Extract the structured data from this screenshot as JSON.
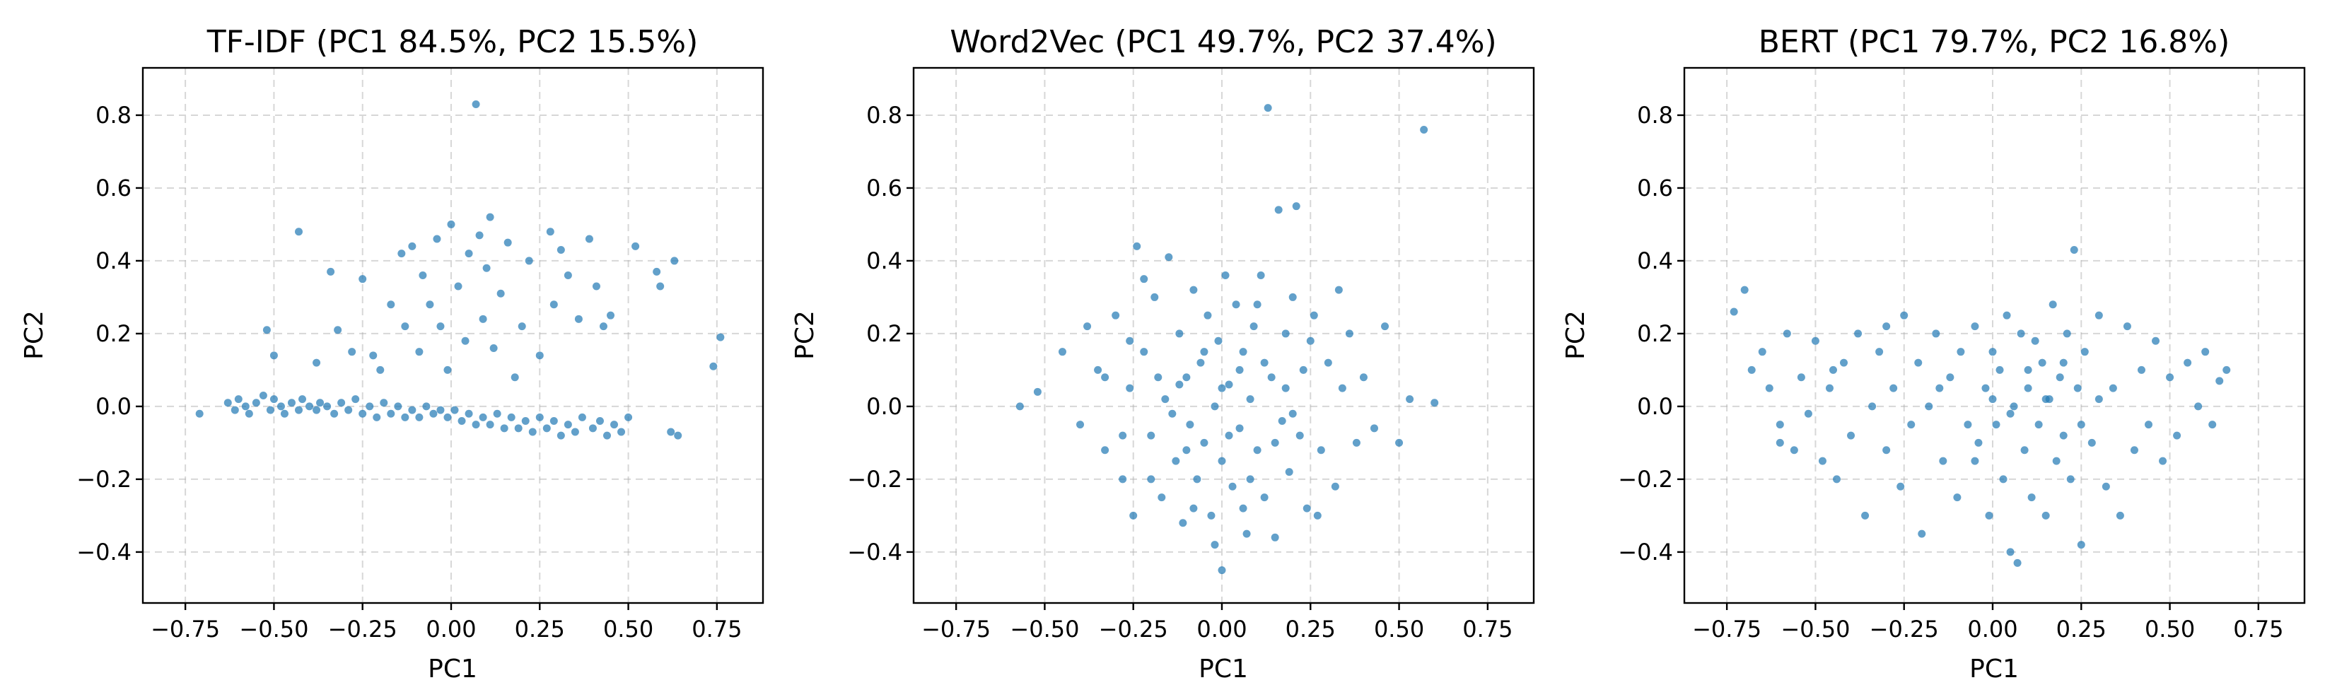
{
  "chart_data": [
    {
      "type": "scatter",
      "title": "TF-IDF (PC1 84.5%, PC2 15.5%)",
      "xlabel": "PC1",
      "ylabel": "PC2",
      "xlim": [
        -0.87,
        0.88
      ],
      "ylim": [
        -0.54,
        0.93
      ],
      "xticks": [
        -0.75,
        -0.5,
        -0.25,
        0.0,
        0.25,
        0.5,
        0.75
      ],
      "xtick_labels": [
        "−0.75",
        "−0.50",
        "−0.25",
        "0.00",
        "0.25",
        "0.50",
        "0.75"
      ],
      "yticks": [
        -0.4,
        -0.2,
        0.0,
        0.2,
        0.4,
        0.6,
        0.8
      ],
      "ytick_labels": [
        "−0.4",
        "−0.2",
        "0.0",
        "0.2",
        "0.4",
        "0.6",
        "0.8"
      ],
      "grid": true,
      "color": "#1f77b4",
      "points": [
        [
          -0.71,
          -0.02
        ],
        [
          -0.63,
          0.01
        ],
        [
          -0.61,
          -0.01
        ],
        [
          -0.6,
          0.02
        ],
        [
          -0.58,
          0.0
        ],
        [
          -0.57,
          -0.02
        ],
        [
          -0.55,
          0.01
        ],
        [
          -0.53,
          0.03
        ],
        [
          -0.51,
          -0.01
        ],
        [
          -0.5,
          0.02
        ],
        [
          -0.48,
          0.0
        ],
        [
          -0.47,
          -0.02
        ],
        [
          -0.45,
          0.01
        ],
        [
          -0.43,
          -0.01
        ],
        [
          -0.42,
          0.02
        ],
        [
          -0.4,
          0.0
        ],
        [
          -0.38,
          -0.01
        ],
        [
          -0.37,
          0.01
        ],
        [
          -0.35,
          0.0
        ],
        [
          -0.33,
          -0.02
        ],
        [
          -0.31,
          0.01
        ],
        [
          -0.29,
          -0.01
        ],
        [
          -0.27,
          0.02
        ],
        [
          -0.25,
          -0.02
        ],
        [
          -0.23,
          0.0
        ],
        [
          -0.21,
          -0.03
        ],
        [
          -0.19,
          0.01
        ],
        [
          -0.17,
          -0.02
        ],
        [
          -0.15,
          0.0
        ],
        [
          -0.13,
          -0.03
        ],
        [
          -0.11,
          -0.01
        ],
        [
          -0.09,
          -0.03
        ],
        [
          -0.07,
          0.0
        ],
        [
          -0.05,
          -0.02
        ],
        [
          -0.03,
          -0.01
        ],
        [
          -0.01,
          -0.03
        ],
        [
          0.01,
          -0.01
        ],
        [
          0.03,
          -0.04
        ],
        [
          0.05,
          -0.02
        ],
        [
          0.07,
          -0.05
        ],
        [
          0.09,
          -0.03
        ],
        [
          0.11,
          -0.05
        ],
        [
          0.13,
          -0.02
        ],
        [
          0.15,
          -0.06
        ],
        [
          0.17,
          -0.03
        ],
        [
          0.19,
          -0.06
        ],
        [
          0.21,
          -0.04
        ],
        [
          0.23,
          -0.07
        ],
        [
          0.25,
          -0.03
        ],
        [
          0.27,
          -0.06
        ],
        [
          0.29,
          -0.04
        ],
        [
          0.31,
          -0.08
        ],
        [
          0.33,
          -0.05
        ],
        [
          0.35,
          -0.07
        ],
        [
          0.37,
          -0.03
        ],
        [
          0.4,
          -0.06
        ],
        [
          0.42,
          -0.04
        ],
        [
          0.44,
          -0.08
        ],
        [
          0.46,
          -0.05
        ],
        [
          0.48,
          -0.07
        ],
        [
          0.5,
          -0.03
        ],
        [
          0.62,
          -0.07
        ],
        [
          0.64,
          -0.08
        ],
        [
          -0.52,
          0.21
        ],
        [
          -0.5,
          0.14
        ],
        [
          -0.43,
          0.48
        ],
        [
          -0.38,
          0.12
        ],
        [
          -0.34,
          0.37
        ],
        [
          -0.32,
          0.21
        ],
        [
          -0.28,
          0.15
        ],
        [
          -0.25,
          0.35
        ],
        [
          -0.22,
          0.14
        ],
        [
          -0.2,
          0.1
        ],
        [
          -0.17,
          0.28
        ],
        [
          -0.14,
          0.42
        ],
        [
          -0.13,
          0.22
        ],
        [
          -0.11,
          0.44
        ],
        [
          -0.09,
          0.15
        ],
        [
          -0.08,
          0.36
        ],
        [
          -0.06,
          0.28
        ],
        [
          -0.04,
          0.46
        ],
        [
          -0.03,
          0.22
        ],
        [
          -0.01,
          0.1
        ],
        [
          0.0,
          0.5
        ],
        [
          0.02,
          0.33
        ],
        [
          0.04,
          0.18
        ],
        [
          0.05,
          0.42
        ],
        [
          0.07,
          0.83
        ],
        [
          0.08,
          0.47
        ],
        [
          0.09,
          0.24
        ],
        [
          0.1,
          0.38
        ],
        [
          0.11,
          0.52
        ],
        [
          0.12,
          0.16
        ],
        [
          0.14,
          0.31
        ],
        [
          0.16,
          0.45
        ],
        [
          0.18,
          0.08
        ],
        [
          0.2,
          0.22
        ],
        [
          0.22,
          0.4
        ],
        [
          0.25,
          0.14
        ],
        [
          0.28,
          0.48
        ],
        [
          0.29,
          0.28
        ],
        [
          0.31,
          0.43
        ],
        [
          0.33,
          0.36
        ],
        [
          0.36,
          0.24
        ],
        [
          0.39,
          0.46
        ],
        [
          0.41,
          0.33
        ],
        [
          0.43,
          0.22
        ],
        [
          0.45,
          0.25
        ],
        [
          0.52,
          0.44
        ],
        [
          0.58,
          0.37
        ],
        [
          0.59,
          0.33
        ],
        [
          0.63,
          0.4
        ],
        [
          0.74,
          0.11
        ],
        [
          0.76,
          0.19
        ]
      ]
    },
    {
      "type": "scatter",
      "title": "Word2Vec (PC1 49.7%, PC2 37.4%)",
      "xlabel": "PC1",
      "ylabel": "PC2",
      "xlim": [
        -0.87,
        0.88
      ],
      "ylim": [
        -0.54,
        0.93
      ],
      "xticks": [
        -0.75,
        -0.5,
        -0.25,
        0.0,
        0.25,
        0.5,
        0.75
      ],
      "xtick_labels": [
        "−0.75",
        "−0.50",
        "−0.25",
        "0.00",
        "0.25",
        "0.50",
        "0.75"
      ],
      "yticks": [
        -0.4,
        -0.2,
        0.0,
        0.2,
        0.4,
        0.6,
        0.8
      ],
      "ytick_labels": [
        "−0.4",
        "−0.2",
        "0.0",
        "0.2",
        "0.4",
        "0.6",
        "0.8"
      ],
      "grid": true,
      "color": "#1f77b4",
      "points": [
        [
          -0.57,
          0.0
        ],
        [
          -0.52,
          0.04
        ],
        [
          -0.45,
          0.15
        ],
        [
          -0.4,
          -0.05
        ],
        [
          -0.38,
          0.22
        ],
        [
          -0.35,
          0.1
        ],
        [
          -0.33,
          -0.12
        ],
        [
          -0.3,
          0.25
        ],
        [
          -0.28,
          -0.2
        ],
        [
          -0.26,
          0.05
        ],
        [
          -0.25,
          -0.3
        ],
        [
          -0.24,
          0.44
        ],
        [
          -0.22,
          0.15
        ],
        [
          -0.2,
          -0.08
        ],
        [
          -0.19,
          0.3
        ],
        [
          -0.17,
          -0.25
        ],
        [
          -0.16,
          0.02
        ],
        [
          -0.15,
          0.41
        ],
        [
          -0.13,
          -0.15
        ],
        [
          -0.12,
          0.2
        ],
        [
          -0.11,
          -0.32
        ],
        [
          -0.1,
          0.08
        ],
        [
          -0.09,
          -0.05
        ],
        [
          -0.08,
          0.32
        ],
        [
          -0.07,
          -0.2
        ],
        [
          -0.06,
          0.12
        ],
        [
          -0.05,
          -0.1
        ],
        [
          -0.04,
          0.25
        ],
        [
          -0.03,
          -0.3
        ],
        [
          -0.02,
          0.0
        ],
        [
          -0.01,
          0.18
        ],
        [
          0.0,
          -0.45
        ],
        [
          0.0,
          -0.15
        ],
        [
          0.01,
          0.36
        ],
        [
          0.02,
          0.06
        ],
        [
          0.03,
          -0.22
        ],
        [
          0.04,
          0.28
        ],
        [
          0.05,
          -0.06
        ],
        [
          0.06,
          0.15
        ],
        [
          0.07,
          -0.35
        ],
        [
          0.08,
          0.02
        ],
        [
          0.09,
          0.22
        ],
        [
          0.1,
          -0.12
        ],
        [
          0.11,
          0.36
        ],
        [
          0.12,
          -0.25
        ],
        [
          0.13,
          0.82
        ],
        [
          0.14,
          0.08
        ],
        [
          0.15,
          -0.36
        ],
        [
          0.16,
          0.54
        ],
        [
          0.17,
          -0.04
        ],
        [
          0.18,
          0.2
        ],
        [
          0.19,
          -0.18
        ],
        [
          0.2,
          0.3
        ],
        [
          0.21,
          0.55
        ],
        [
          0.22,
          -0.08
        ],
        [
          0.23,
          0.1
        ],
        [
          0.24,
          -0.28
        ],
        [
          0.26,
          0.25
        ],
        [
          0.28,
          -0.12
        ],
        [
          0.3,
          0.12
        ],
        [
          0.32,
          -0.22
        ],
        [
          0.34,
          0.05
        ],
        [
          0.36,
          0.2
        ],
        [
          0.38,
          -0.1
        ],
        [
          0.4,
          0.08
        ],
        [
          0.43,
          -0.06
        ],
        [
          0.46,
          0.22
        ],
        [
          0.5,
          -0.1
        ],
        [
          0.53,
          0.02
        ],
        [
          0.57,
          0.76
        ],
        [
          0.6,
          0.01
        ],
        [
          -0.2,
          -0.2
        ],
        [
          -0.1,
          -0.12
        ],
        [
          0.0,
          0.05
        ],
        [
          0.05,
          0.1
        ],
        [
          -0.14,
          -0.02
        ],
        [
          0.12,
          0.12
        ],
        [
          -0.05,
          0.15
        ],
        [
          0.15,
          -0.1
        ],
        [
          0.08,
          -0.2
        ],
        [
          -0.08,
          -0.28
        ],
        [
          0.18,
          0.05
        ],
        [
          -0.18,
          0.08
        ],
        [
          0.02,
          -0.08
        ],
        [
          0.25,
          0.18
        ],
        [
          -0.28,
          -0.08
        ],
        [
          0.33,
          0.32
        ],
        [
          -0.33,
          0.08
        ],
        [
          0.27,
          -0.3
        ],
        [
          -0.22,
          0.35
        ],
        [
          0.1,
          0.28
        ],
        [
          -0.12,
          0.06
        ],
        [
          0.06,
          -0.28
        ],
        [
          -0.02,
          -0.38
        ],
        [
          0.2,
          -0.02
        ],
        [
          -0.26,
          0.18
        ]
      ]
    },
    {
      "type": "scatter",
      "title": "BERT (PC1 79.7%, PC2 16.8%)",
      "xlabel": "PC1",
      "ylabel": "PC2",
      "xlim": [
        -0.87,
        0.88
      ],
      "ylim": [
        -0.54,
        0.93
      ],
      "xticks": [
        -0.75,
        -0.5,
        -0.25,
        0.0,
        0.25,
        0.5,
        0.75
      ],
      "xtick_labels": [
        "−0.75",
        "−0.50",
        "−0.25",
        "0.00",
        "0.25",
        "0.50",
        "0.75"
      ],
      "yticks": [
        -0.4,
        -0.2,
        0.0,
        0.2,
        0.4,
        0.6,
        0.8
      ],
      "ytick_labels": [
        "−0.4",
        "−0.2",
        "0.0",
        "0.2",
        "0.4",
        "0.6",
        "0.8"
      ],
      "grid": true,
      "color": "#1f77b4",
      "points": [
        [
          -0.73,
          0.26
        ],
        [
          -0.7,
          0.32
        ],
        [
          -0.68,
          0.1
        ],
        [
          -0.65,
          0.15
        ],
        [
          -0.63,
          0.05
        ],
        [
          -0.6,
          -0.05
        ],
        [
          -0.58,
          0.2
        ],
        [
          -0.56,
          -0.12
        ],
        [
          -0.54,
          0.08
        ],
        [
          -0.52,
          -0.02
        ],
        [
          -0.5,
          0.18
        ],
        [
          -0.48,
          -0.15
        ],
        [
          -0.46,
          0.05
        ],
        [
          -0.44,
          -0.2
        ],
        [
          -0.42,
          0.12
        ],
        [
          -0.4,
          -0.08
        ],
        [
          -0.38,
          0.2
        ],
        [
          -0.36,
          -0.3
        ],
        [
          -0.34,
          0.0
        ],
        [
          -0.32,
          0.15
        ],
        [
          -0.3,
          -0.12
        ],
        [
          -0.28,
          0.05
        ],
        [
          -0.26,
          -0.22
        ],
        [
          -0.25,
          0.25
        ],
        [
          -0.23,
          -0.05
        ],
        [
          -0.21,
          0.12
        ],
        [
          -0.2,
          -0.35
        ],
        [
          -0.18,
          0.0
        ],
        [
          -0.16,
          0.2
        ],
        [
          -0.14,
          -0.15
        ],
        [
          -0.12,
          0.08
        ],
        [
          -0.1,
          -0.25
        ],
        [
          -0.09,
          0.15
        ],
        [
          -0.07,
          -0.05
        ],
        [
          -0.05,
          0.22
        ],
        [
          -0.04,
          -0.1
        ],
        [
          -0.02,
          0.05
        ],
        [
          -0.01,
          -0.3
        ],
        [
          0.0,
          0.15
        ],
        [
          0.01,
          -0.05
        ],
        [
          0.02,
          0.1
        ],
        [
          0.03,
          -0.2
        ],
        [
          0.04,
          0.25
        ],
        [
          0.05,
          -0.4
        ],
        [
          0.06,
          0.0
        ],
        [
          0.07,
          -0.43
        ],
        [
          0.08,
          0.2
        ],
        [
          0.09,
          -0.12
        ],
        [
          0.1,
          0.05
        ],
        [
          0.11,
          -0.25
        ],
        [
          0.12,
          0.18
        ],
        [
          0.13,
          -0.05
        ],
        [
          0.14,
          0.12
        ],
        [
          0.15,
          -0.3
        ],
        [
          0.16,
          0.02
        ],
        [
          0.17,
          0.28
        ],
        [
          0.18,
          -0.15
        ],
        [
          0.19,
          0.08
        ],
        [
          0.2,
          -0.08
        ],
        [
          0.21,
          0.2
        ],
        [
          0.22,
          -0.2
        ],
        [
          0.23,
          0.43
        ],
        [
          0.24,
          0.05
        ],
        [
          0.25,
          -0.38
        ],
        [
          0.26,
          0.15
        ],
        [
          0.28,
          -0.1
        ],
        [
          0.3,
          0.25
        ],
        [
          0.32,
          -0.22
        ],
        [
          0.34,
          0.05
        ],
        [
          0.36,
          -0.3
        ],
        [
          0.38,
          0.22
        ],
        [
          0.4,
          -0.12
        ],
        [
          0.42,
          0.1
        ],
        [
          0.44,
          -0.05
        ],
        [
          0.46,
          0.18
        ],
        [
          0.48,
          -0.15
        ],
        [
          0.5,
          0.08
        ],
        [
          0.52,
          -0.08
        ],
        [
          0.55,
          0.12
        ],
        [
          0.58,
          0.0
        ],
        [
          0.6,
          0.15
        ],
        [
          0.62,
          -0.05
        ],
        [
          0.64,
          0.07
        ],
        [
          0.66,
          0.1
        ],
        [
          -0.6,
          -0.1
        ],
        [
          -0.45,
          0.1
        ],
        [
          -0.3,
          0.22
        ],
        [
          0.0,
          0.02
        ],
        [
          0.05,
          -0.02
        ],
        [
          0.1,
          0.1
        ],
        [
          -0.05,
          -0.15
        ],
        [
          0.15,
          0.02
        ],
        [
          0.2,
          0.12
        ],
        [
          0.25,
          -0.05
        ],
        [
          -0.15,
          0.05
        ],
        [
          0.3,
          0.02
        ]
      ]
    }
  ]
}
